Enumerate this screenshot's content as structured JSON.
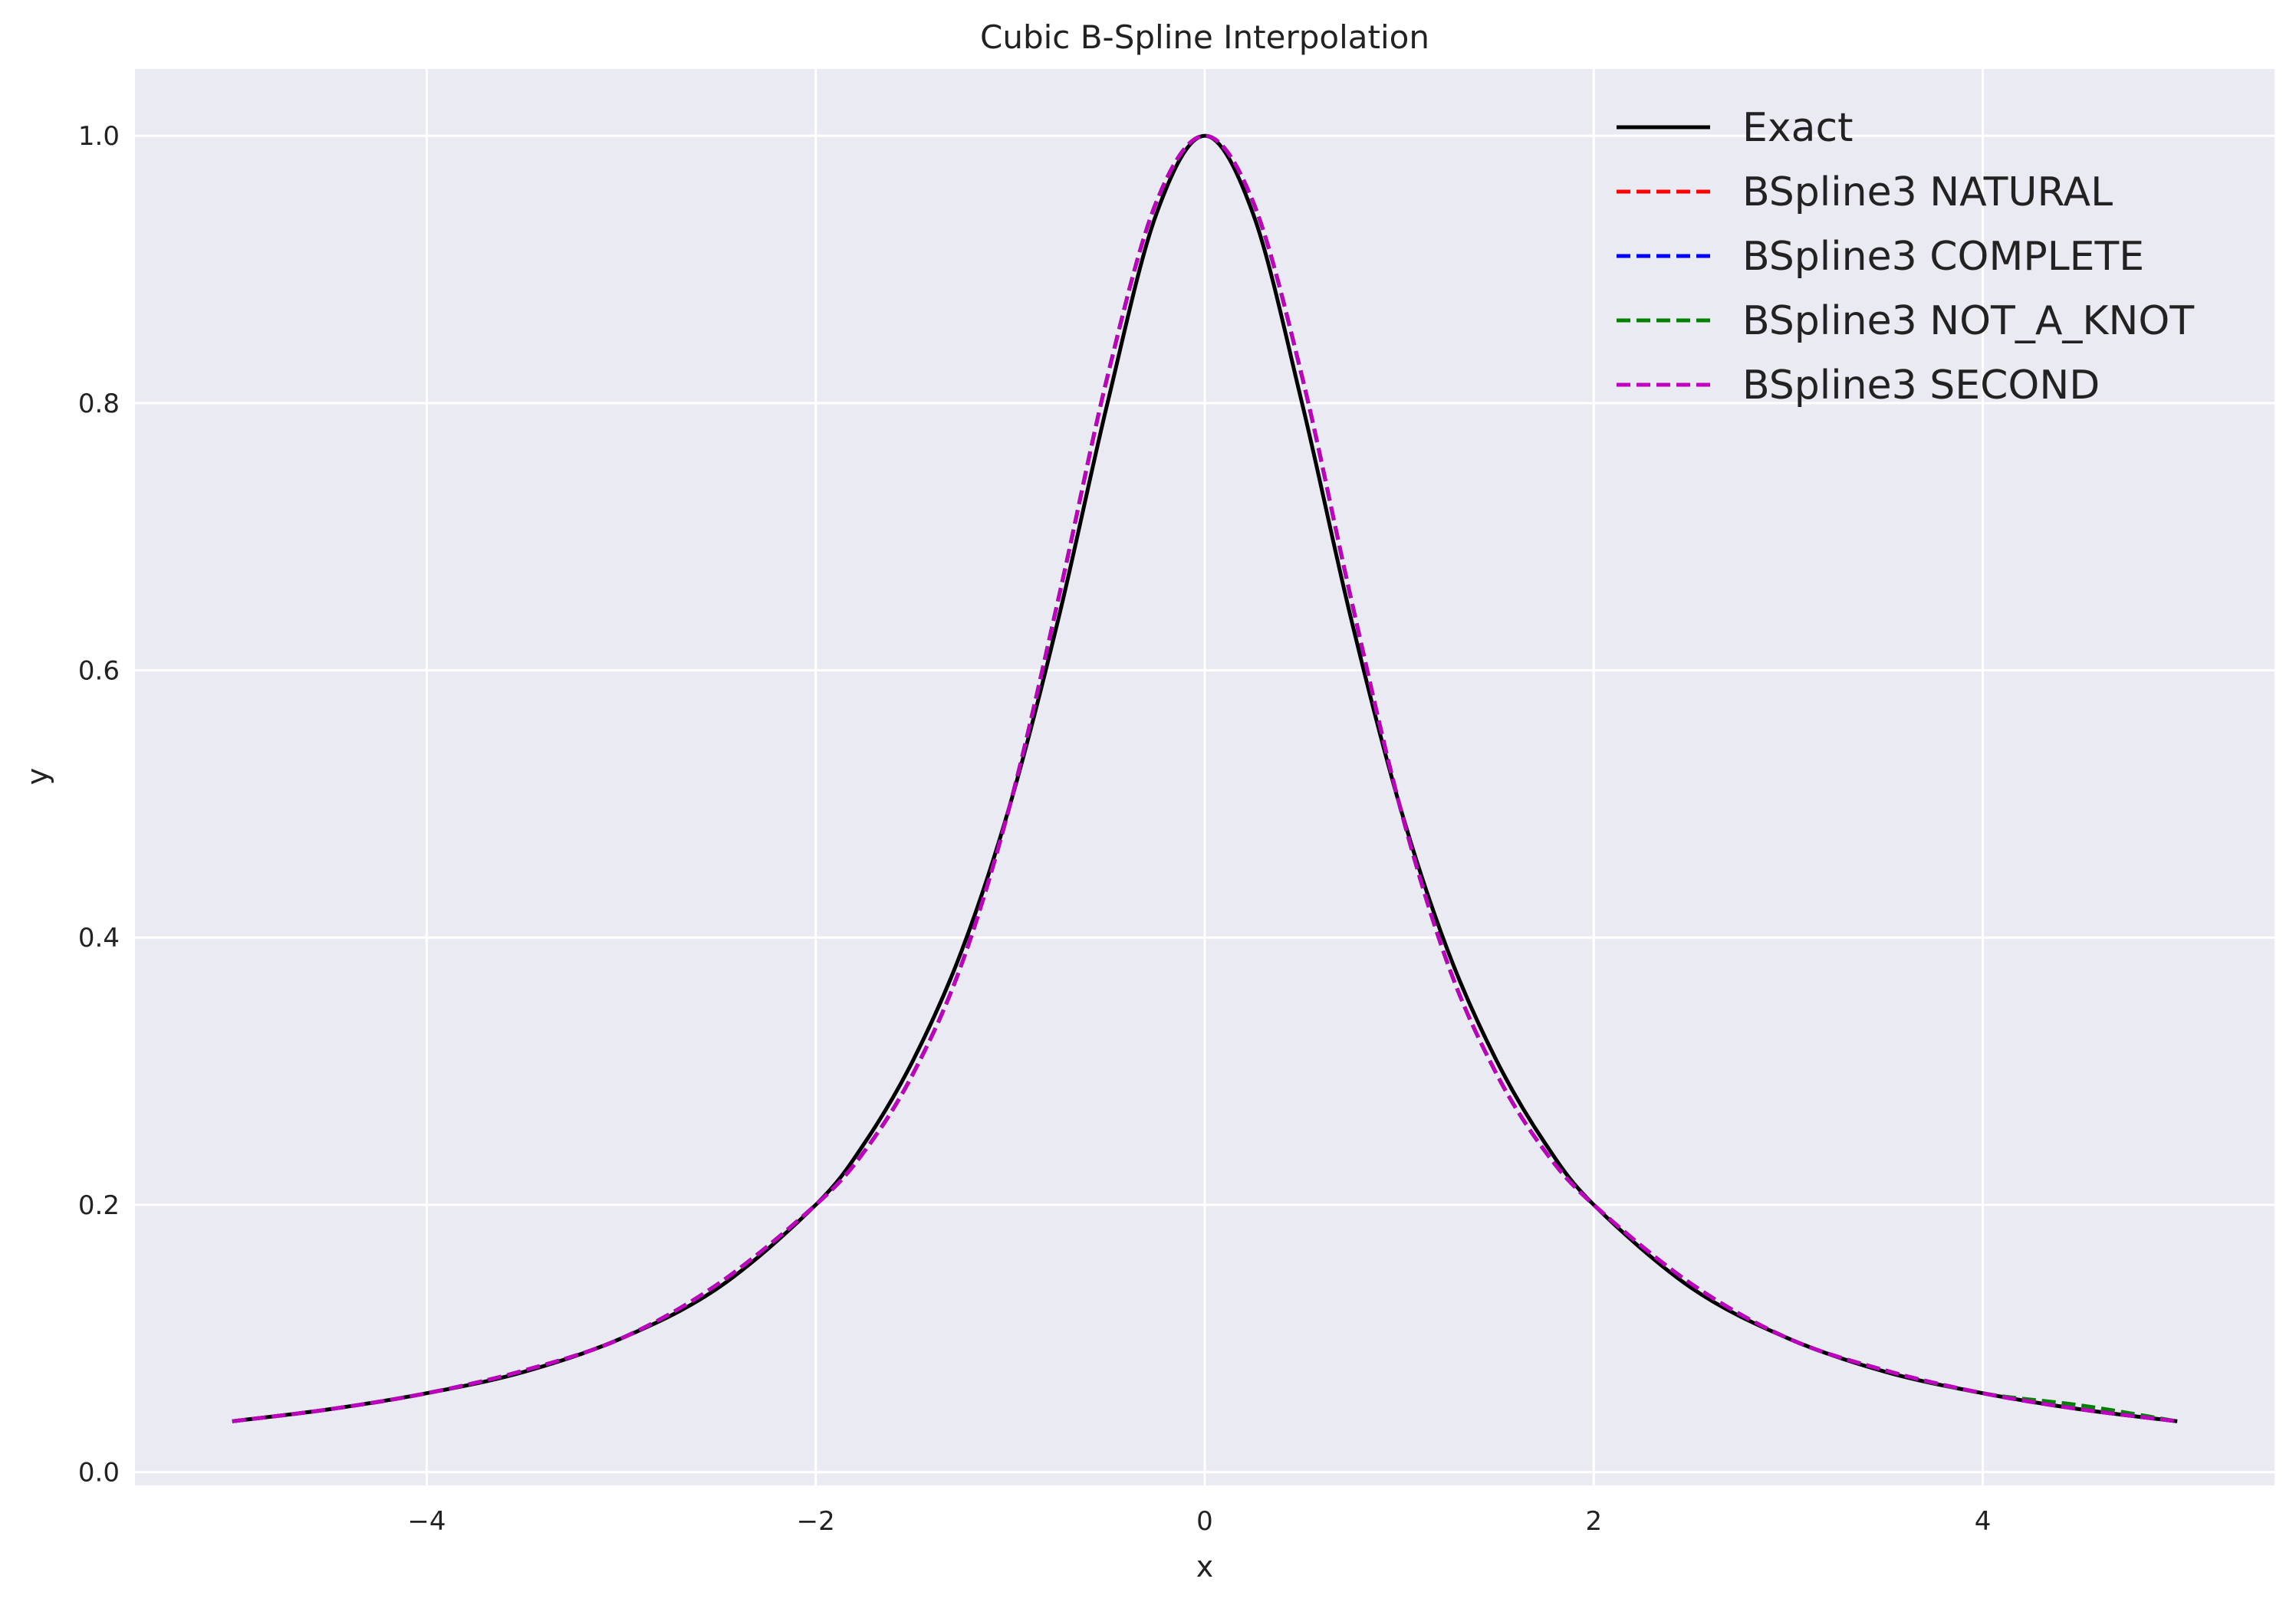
{
  "chart_data": {
    "type": "line",
    "title": "Cubic B-Spline Interpolation",
    "xlabel": "x",
    "ylabel": "y",
    "xlim": [
      -5.5,
      5.5
    ],
    "ylim": [
      -0.01,
      1.05
    ],
    "xticks": [
      -4,
      -2,
      0,
      2,
      4
    ],
    "xtick_labels": [
      "−4",
      "−2",
      "0",
      "2",
      "4"
    ],
    "yticks": [
      0.0,
      0.2,
      0.4,
      0.6,
      0.8,
      1.0
    ],
    "ytick_labels": [
      "0.0",
      "0.2",
      "0.4",
      "0.6",
      "0.8",
      "1.0"
    ],
    "grid": true,
    "legend_position": "top-right",
    "x": [
      -5,
      -4.5,
      -4,
      -3.5,
      -3,
      -2.5,
      -2,
      -1.75,
      -1.5,
      -1.25,
      -1,
      -0.75,
      -0.5,
      -0.25,
      0,
      0.25,
      0.5,
      0.75,
      1,
      1.25,
      1.5,
      1.75,
      2,
      2.5,
      3,
      3.5,
      4,
      4.5,
      5
    ],
    "series": [
      {
        "name": "Exact",
        "color": "#000000",
        "style": "solid",
        "values": [
          0.038,
          0.047,
          0.059,
          0.075,
          0.1,
          0.138,
          0.2,
          0.246,
          0.308,
          0.39,
          0.5,
          0.64,
          0.8,
          0.941,
          1.0,
          0.941,
          0.8,
          0.64,
          0.5,
          0.39,
          0.308,
          0.246,
          0.2,
          0.138,
          0.1,
          0.075,
          0.059,
          0.047,
          0.038
        ]
      },
      {
        "name": "BSpline3 NATURAL",
        "color": "#ff0000",
        "style": "dashed",
        "values": [
          0.038,
          0.047,
          0.059,
          0.076,
          0.1,
          0.141,
          0.2,
          0.24,
          0.298,
          0.38,
          0.5,
          0.655,
          0.82,
          0.95,
          1.0,
          0.95,
          0.82,
          0.655,
          0.5,
          0.38,
          0.298,
          0.24,
          0.2,
          0.141,
          0.1,
          0.076,
          0.059,
          0.047,
          0.038
        ]
      },
      {
        "name": "BSpline3 COMPLETE",
        "color": "#0000ff",
        "style": "dashed",
        "values": [
          0.038,
          0.047,
          0.059,
          0.076,
          0.1,
          0.141,
          0.2,
          0.24,
          0.298,
          0.38,
          0.5,
          0.655,
          0.82,
          0.95,
          1.0,
          0.95,
          0.82,
          0.655,
          0.5,
          0.38,
          0.298,
          0.24,
          0.2,
          0.141,
          0.1,
          0.076,
          0.059,
          0.047,
          0.038
        ]
      },
      {
        "name": "BSpline3 NOT_A_KNOT",
        "color": "#008000",
        "style": "dashed",
        "values": [
          0.038,
          0.047,
          0.059,
          0.076,
          0.1,
          0.141,
          0.2,
          0.24,
          0.298,
          0.38,
          0.5,
          0.655,
          0.82,
          0.95,
          1.0,
          0.95,
          0.82,
          0.655,
          0.5,
          0.38,
          0.298,
          0.24,
          0.2,
          0.141,
          0.1,
          0.076,
          0.059,
          0.05,
          0.038
        ]
      },
      {
        "name": "BSpline3 SECOND",
        "color": "#bf00bf",
        "style": "dashed",
        "values": [
          0.038,
          0.047,
          0.059,
          0.076,
          0.1,
          0.141,
          0.2,
          0.24,
          0.298,
          0.38,
          0.5,
          0.655,
          0.82,
          0.95,
          1.0,
          0.95,
          0.82,
          0.655,
          0.5,
          0.38,
          0.298,
          0.24,
          0.2,
          0.141,
          0.1,
          0.076,
          0.059,
          0.047,
          0.038
        ]
      }
    ]
  },
  "colors": {
    "plot_background": "#eaeaf2",
    "grid": "#ffffff"
  }
}
